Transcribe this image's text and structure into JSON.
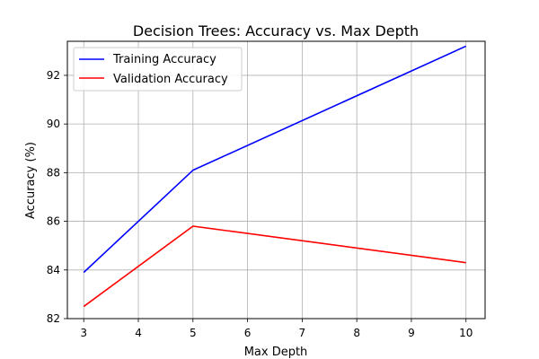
{
  "chart_data": {
    "type": "line",
    "title": "Decision Trees: Accuracy vs. Max Depth",
    "xlabel": "Max Depth",
    "ylabel": "Accuracy (%)",
    "xlim": [
      2.7,
      10.35
    ],
    "ylim": [
      82.0,
      93.4
    ],
    "xticks": [
      3,
      4,
      5,
      6,
      7,
      8,
      9,
      10
    ],
    "yticks": [
      82,
      84,
      86,
      88,
      90,
      92
    ],
    "grid": true,
    "legend_position": "top-left",
    "series": [
      {
        "name": "Training Accuracy",
        "color": "#0000ff",
        "x": [
          3,
          5,
          10
        ],
        "y": [
          83.9,
          88.1,
          93.2
        ]
      },
      {
        "name": "Validation Accuracy",
        "color": "#ff0000",
        "x": [
          3,
          5,
          10
        ],
        "y": [
          82.5,
          85.8,
          84.3
        ]
      }
    ]
  }
}
